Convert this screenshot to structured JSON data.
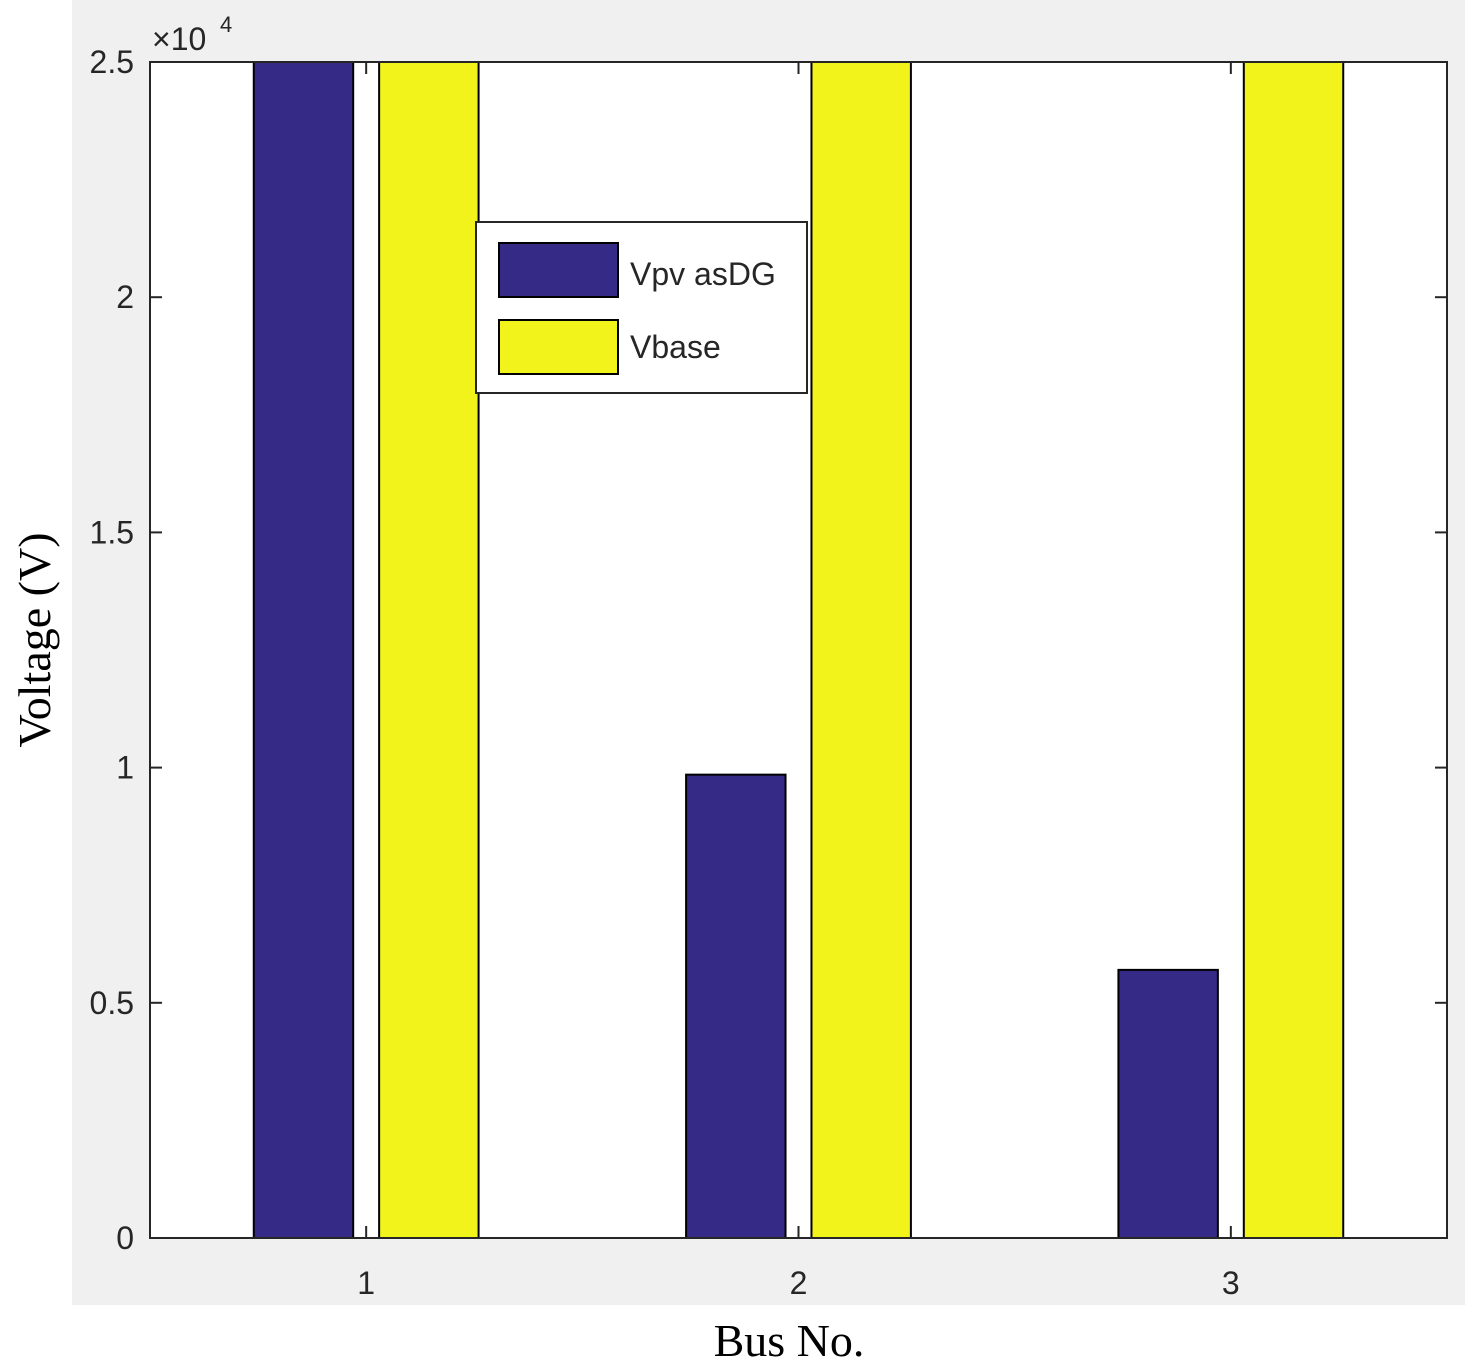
{
  "chart_data": {
    "type": "bar",
    "xlabel": "Bus No.",
    "ylabel": "Voltage (V)",
    "categories": [
      "1",
      "2",
      "3"
    ],
    "ylim": [
      0,
      25000
    ],
    "y_ticks": [
      "0",
      "0.5",
      "1",
      "1.5",
      "2",
      "2.5"
    ],
    "y_exponent_base": "×10",
    "y_exponent_power": "4",
    "series": [
      {
        "name": "Vpv asDG",
        "values": [
          25000,
          9850,
          5700
        ],
        "color": "#352a86"
      },
      {
        "name": "Vbase",
        "values": [
          25000,
          25000,
          25000
        ],
        "color": "#f3f31c"
      }
    ],
    "legend_position": "top-center",
    "grid": false
  },
  "colors": {
    "figure_background": "#f0f0f0",
    "axes_background": "#ffffff",
    "bar_edge": "#000000"
  }
}
